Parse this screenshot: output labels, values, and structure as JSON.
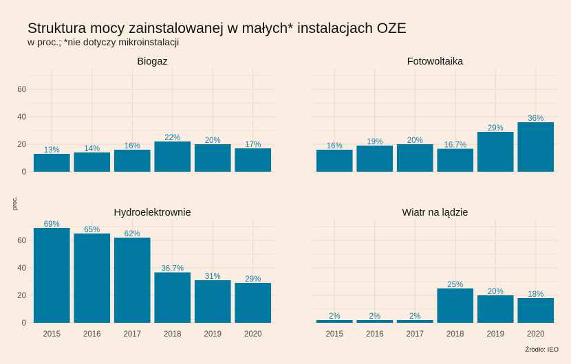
{
  "chart_data": {
    "type": "bar",
    "title": "Struktura mocy zainstalowanej w małych* instalacjach OZE",
    "subtitle": "w proc.; *nie dotyczy mikroinstalacji",
    "ylabel": "proc.",
    "source": "Źródło:  IEO",
    "categories": [
      "2015",
      "2016",
      "2017",
      "2018",
      "2019",
      "2020"
    ],
    "ylim": [
      0,
      72
    ],
    "yticks": [
      0,
      20,
      40,
      60
    ],
    "bar_color": "#0078a0",
    "label_color": "#1a7fa8",
    "background": "#faede2",
    "grid": true,
    "facets": [
      {
        "name": "Biogaz",
        "values": [
          13,
          14,
          16,
          22,
          20,
          17
        ],
        "labels": [
          "13%",
          "14%",
          "16%",
          "22%",
          "20%",
          "17%"
        ]
      },
      {
        "name": "Fotowoltaika",
        "values": [
          16,
          19,
          20,
          16.7,
          29,
          36
        ],
        "labels": [
          "16%",
          "19%",
          "20%",
          "16.7%",
          "29%",
          "36%"
        ]
      },
      {
        "name": "Hydroelektrownie",
        "values": [
          69,
          65,
          62,
          36.7,
          31,
          29
        ],
        "labels": [
          "69%",
          "65%",
          "62%",
          "36.7%",
          "31%",
          "29%"
        ]
      },
      {
        "name": "Wiatr na lądzie",
        "values": [
          2,
          2,
          2,
          25,
          20,
          18
        ],
        "labels": [
          "2%",
          "2%",
          "2%",
          "25%",
          "20%",
          "18%"
        ]
      }
    ]
  }
}
